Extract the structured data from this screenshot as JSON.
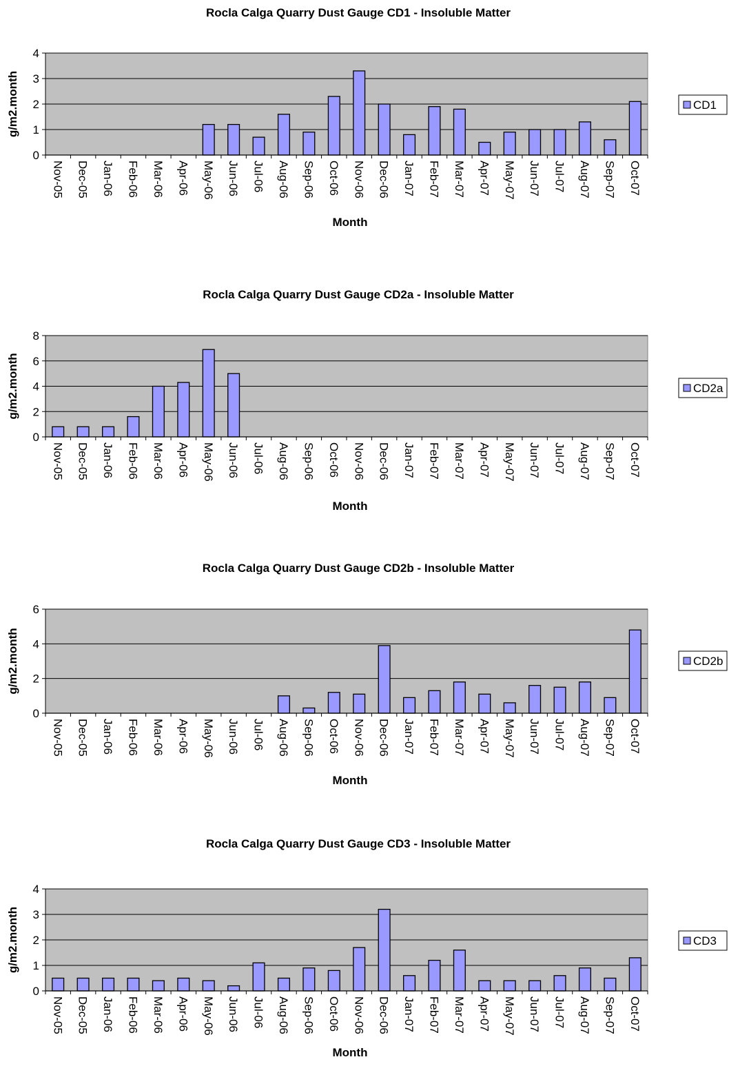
{
  "chart_data": [
    {
      "type": "bar",
      "title": "Rocla Calga Quarry Dust Gauge CD1 - Insoluble Matter",
      "xlabel": "Month",
      "ylabel": "g/m2.month",
      "ylim": [
        0,
        4
      ],
      "yticks": [
        0,
        1,
        2,
        3,
        4
      ],
      "grid": true,
      "legend_position": "right",
      "categories": [
        "Nov-05",
        "Dec-05",
        "Jan-06",
        "Feb-06",
        "Mar-06",
        "Apr-06",
        "May-06",
        "Jun-06",
        "Jul-06",
        "Aug-06",
        "Sep-06",
        "Oct-06",
        "Nov-06",
        "Dec-06",
        "Jan-07",
        "Feb-07",
        "Mar-07",
        "Apr-07",
        "May-07",
        "Jun-07",
        "Jul-07",
        "Aug-07",
        "Sep-07",
        "Oct-07"
      ],
      "series": [
        {
          "name": "CD1",
          "values": [
            null,
            null,
            null,
            null,
            null,
            null,
            1.2,
            1.2,
            0.7,
            1.6,
            0.9,
            2.3,
            3.3,
            2.0,
            0.8,
            1.9,
            1.8,
            0.5,
            0.9,
            1.0,
            1.0,
            1.3,
            0.6,
            2.1
          ]
        }
      ]
    },
    {
      "type": "bar",
      "title": "Rocla Calga Quarry Dust Gauge CD2a - Insoluble Matter",
      "xlabel": "Month",
      "ylabel": "g/m2.month",
      "ylim": [
        0,
        8
      ],
      "yticks": [
        0,
        2,
        4,
        6,
        8
      ],
      "grid": true,
      "legend_position": "right",
      "categories": [
        "Nov-05",
        "Dec-05",
        "Jan-06",
        "Feb-06",
        "Mar-06",
        "Apr-06",
        "May-06",
        "Jun-06",
        "Jul-06",
        "Aug-06",
        "Sep-06",
        "Oct-06",
        "Nov-06",
        "Dec-06",
        "Jan-07",
        "Feb-07",
        "Mar-07",
        "Apr-07",
        "May-07",
        "Jun-07",
        "Jul-07",
        "Aug-07",
        "Sep-07",
        "Oct-07"
      ],
      "series": [
        {
          "name": "CD2a",
          "values": [
            0.8,
            0.8,
            0.8,
            1.6,
            4.0,
            4.3,
            6.9,
            5.0,
            null,
            null,
            null,
            null,
            null,
            null,
            null,
            null,
            null,
            null,
            null,
            null,
            null,
            null,
            null,
            null
          ]
        }
      ]
    },
    {
      "type": "bar",
      "title": "Rocla Calga Quarry Dust Gauge CD2b - Insoluble Matter",
      "xlabel": "Month",
      "ylabel": "g/m2.month",
      "ylim": [
        0,
        6
      ],
      "yticks": [
        0,
        2,
        4,
        6
      ],
      "grid": true,
      "legend_position": "right",
      "categories": [
        "Nov-05",
        "Dec-05",
        "Jan-06",
        "Feb-06",
        "Mar-06",
        "Apr-06",
        "May-06",
        "Jun-06",
        "Jul-06",
        "Aug-06",
        "Sep-06",
        "Oct-06",
        "Nov-06",
        "Dec-06",
        "Jan-07",
        "Feb-07",
        "Mar-07",
        "Apr-07",
        "May-07",
        "Jun-07",
        "Jul-07",
        "Aug-07",
        "Sep-07",
        "Oct-07"
      ],
      "series": [
        {
          "name": "CD2b",
          "values": [
            null,
            null,
            null,
            null,
            null,
            null,
            null,
            null,
            null,
            1.0,
            0.3,
            1.2,
            1.1,
            3.9,
            0.9,
            1.3,
            1.8,
            1.1,
            0.6,
            1.6,
            1.5,
            1.8,
            0.9,
            4.8
          ]
        }
      ]
    },
    {
      "type": "bar",
      "title": "Rocla Calga Quarry Dust Gauge CD3 - Insoluble Matter",
      "xlabel": "Month",
      "ylabel": "g/m2.month",
      "ylim": [
        0,
        4
      ],
      "yticks": [
        0,
        1,
        2,
        3,
        4
      ],
      "grid": true,
      "legend_position": "right",
      "categories": [
        "Nov-05",
        "Dec-05",
        "Jan-06",
        "Feb-06",
        "Mar-06",
        "Apr-06",
        "May-06",
        "Jun-06",
        "Jul-06",
        "Aug-06",
        "Sep-06",
        "Oct-06",
        "Nov-06",
        "Dec-06",
        "Jan-07",
        "Feb-07",
        "Mar-07",
        "Apr-07",
        "May-07",
        "Jun-07",
        "Jul-07",
        "Aug-07",
        "Sep-07",
        "Oct-07"
      ],
      "series": [
        {
          "name": "CD3",
          "values": [
            0.5,
            0.5,
            0.5,
            0.5,
            0.4,
            0.5,
            0.4,
            0.2,
            1.1,
            0.5,
            0.9,
            0.8,
            1.7,
            3.2,
            0.6,
            1.2,
            1.6,
            0.4,
            0.4,
            0.4,
            0.6,
            0.9,
            0.5,
            1.3
          ]
        }
      ]
    }
  ],
  "colors": {
    "bar_fill": "#9999ff",
    "bar_stroke": "#000000",
    "plot_background": "#c0c0c0",
    "gridline": "#000000"
  }
}
